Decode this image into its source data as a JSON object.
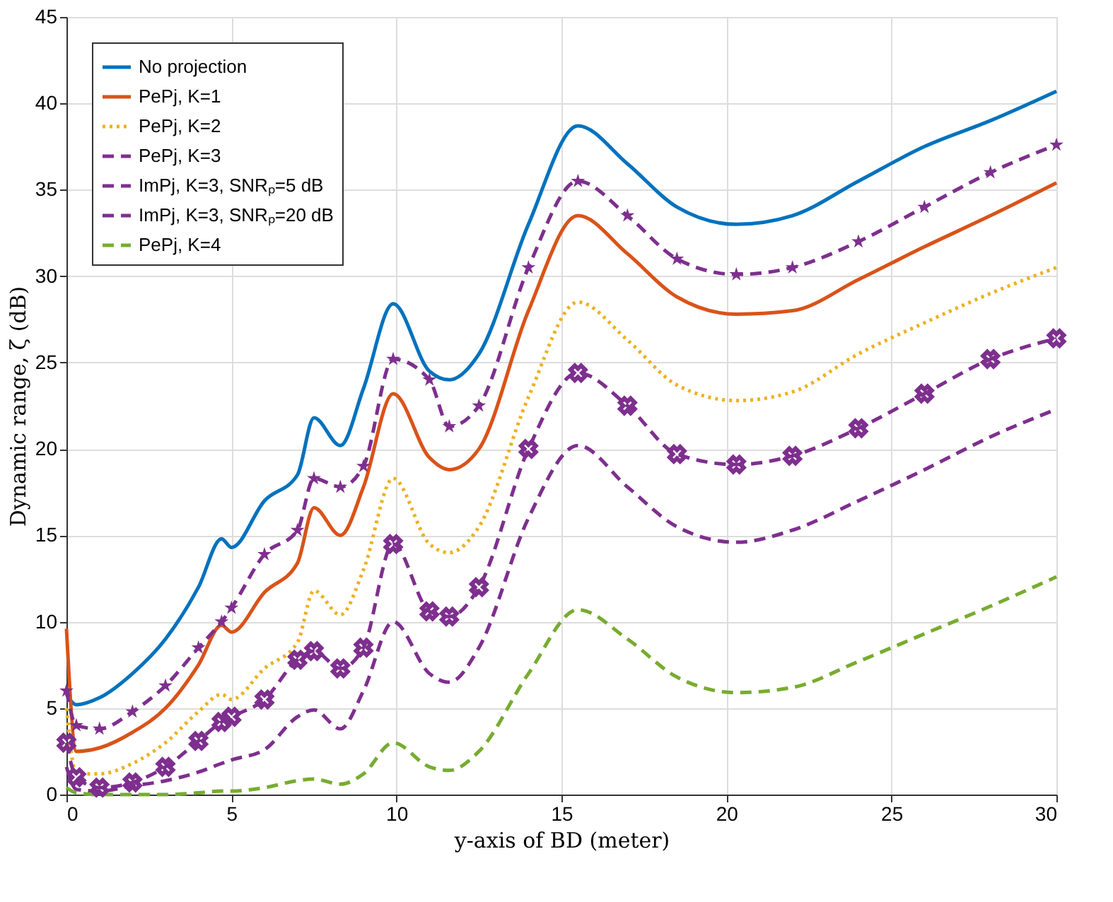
{
  "chart_data": {
    "type": "line",
    "xlabel": "y-axis of BD (meter)",
    "ylabel": "Dynamic range, ζ (dB)",
    "x": [
      0,
      0.3,
      1,
      2,
      3,
      4,
      4.7,
      5,
      6,
      7,
      7.5,
      8.3,
      9,
      9.9,
      11,
      11.6,
      12.5,
      14,
      15.5,
      17,
      18.5,
      20.3,
      22,
      24,
      26,
      28,
      30
    ],
    "xlim": [
      0,
      30
    ],
    "xticks": [
      0,
      5,
      10,
      15,
      20,
      25,
      30
    ],
    "ylim": [
      0,
      45
    ],
    "yticks": [
      0,
      5,
      10,
      15,
      20,
      25,
      30,
      35,
      40,
      45
    ],
    "grid": true,
    "legend": "top left",
    "series": [
      {
        "name": "No projection",
        "color": "#0072bd",
        "line_style": "solid",
        "marker": "none",
        "values": [
          5.8,
          5.2,
          5.6,
          7,
          9,
          12,
          14.8,
          14.3,
          17,
          18.5,
          21.8,
          20.2,
          23.5,
          28.4,
          24.5,
          24,
          25.5,
          33,
          38.7,
          36.5,
          34,
          33,
          33.5,
          35.5,
          37.5,
          39,
          40.7
        ]
      },
      {
        "name": "PePj, K=1",
        "color": "#d95319",
        "line_style": "solid",
        "marker": "none",
        "values": [
          9.6,
          2.5,
          2.7,
          3.6,
          5,
          7.5,
          9.8,
          9.4,
          11.7,
          13.4,
          16.6,
          15,
          17.8,
          23.2,
          19.5,
          18.8,
          20,
          28,
          33.5,
          31.3,
          28.8,
          27.8,
          28,
          29.8,
          31.7,
          33.5,
          35.4
        ]
      },
      {
        "name": "PePj, K=2",
        "color": "#edb120",
        "line_style": "dotted",
        "marker": "none",
        "values": [
          5,
          1.2,
          1.2,
          1.8,
          3,
          4.8,
          5.8,
          5.5,
          7.3,
          8.8,
          11.8,
          10.4,
          13,
          18.3,
          14.5,
          14,
          15.5,
          23,
          28.5,
          26.3,
          23.7,
          22.8,
          23.3,
          25.5,
          27.3,
          29,
          30.5
        ]
      },
      {
        "name": "PePj, K=3",
        "color": "#7e2f8e",
        "line_style": "dashed",
        "marker": "none",
        "values": [
          1.6,
          0.3,
          0.2,
          0.5,
          0.8,
          1.3,
          1.8,
          2,
          2.6,
          4.5,
          4.9,
          3.8,
          6,
          10,
          7,
          6.5,
          8.5,
          16,
          20.2,
          17.8,
          15.5,
          14.6,
          15.3,
          17,
          18.8,
          20.7,
          22.3
        ]
      },
      {
        "name": "ImPj, K=3, SNRₚ=5 dB",
        "color": "#7e2f8e",
        "line_style": "dashed",
        "marker": "star",
        "values": [
          6,
          4,
          3.8,
          4.8,
          6.3,
          8.5,
          10,
          10.8,
          13.9,
          15.3,
          18.3,
          17.8,
          19,
          25.2,
          24,
          21.3,
          22.5,
          30.5,
          35.5,
          33.5,
          31,
          30.1,
          30.5,
          32,
          34,
          36,
          37.6
        ]
      },
      {
        "name": "ImPj, K=3, SNRₚ=20 dB",
        "color": "#7e2f8e",
        "line_style": "dashed",
        "marker": "cross",
        "values": [
          3,
          1,
          0.4,
          0.7,
          1.6,
          3.1,
          4.2,
          4.5,
          5.5,
          7.8,
          8.3,
          7.3,
          8.5,
          14.5,
          10.6,
          10.3,
          12,
          20,
          24.4,
          22.5,
          19.7,
          19.1,
          19.6,
          21.2,
          23.2,
          25.2,
          26.4
        ]
      },
      {
        "name": "PePj, K=4",
        "color": "#77ac30",
        "line_style": "dashed",
        "marker": "none",
        "values": [
          0.4,
          0.1,
          0,
          0,
          0,
          0.1,
          0.2,
          0.2,
          0.4,
          0.8,
          0.9,
          0.6,
          1.2,
          3,
          1.6,
          1.4,
          2.5,
          7,
          10.7,
          9,
          6.8,
          5.9,
          6.2,
          7.7,
          9.3,
          10.9,
          12.6
        ]
      }
    ]
  }
}
